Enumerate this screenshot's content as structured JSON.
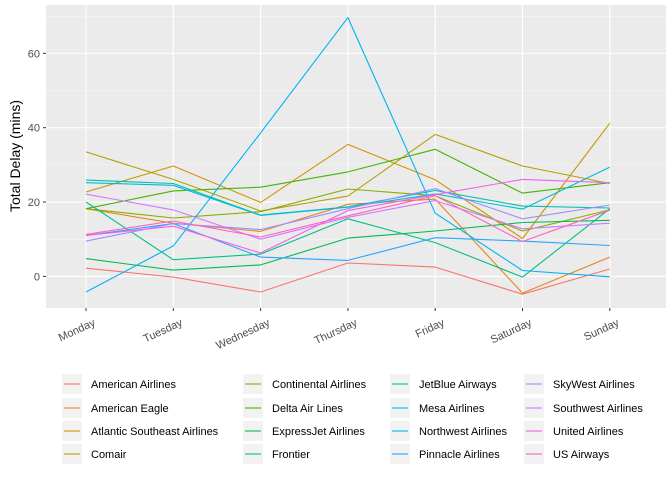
{
  "chart_data": {
    "type": "line",
    "title": "",
    "xlabel": "",
    "ylabel": "Total Delay (mins)",
    "categories": [
      "Monday",
      "Tuesday",
      "Wednesday",
      "Thursday",
      "Friday",
      "Saturday",
      "Sunday"
    ],
    "y_ticks": [
      0,
      20,
      40,
      60
    ],
    "y_tick_labels": [
      "0",
      "20",
      "40",
      "60"
    ],
    "ylim": [
      -8.5,
      73.0
    ],
    "grid": true,
    "legend_position": "bottom",
    "series": [
      {
        "name": "American Airlines",
        "color": "#F8766D",
        "values": [
          2.2,
          -0.2,
          -4.2,
          3.6,
          2.5,
          -4.8,
          2.0
        ]
      },
      {
        "name": "American Eagle",
        "color": "#E7851E",
        "values": [
          18.2,
          14.3,
          12.1,
          19.4,
          20.8,
          -4.5,
          5.2
        ]
      },
      {
        "name": "Atlantic Southeast Airlines",
        "color": "#D09400",
        "values": [
          22.7,
          29.7,
          19.9,
          35.5,
          26.0,
          10.2,
          41.2
        ]
      },
      {
        "name": "Comair",
        "color": "#B2A100",
        "values": [
          33.5,
          26.1,
          17.6,
          21.6,
          38.2,
          29.7,
          25.0
        ]
      },
      {
        "name": "Continental Airlines",
        "color": "#89AC00",
        "values": [
          18.2,
          15.7,
          17.4,
          23.5,
          21.7,
          12.2,
          17.9
        ]
      },
      {
        "name": "Delta Air Lines",
        "color": "#45B500",
        "values": [
          18.2,
          23.0,
          24.0,
          28.1,
          34.2,
          22.4,
          25.2
        ]
      },
      {
        "name": "ExpressJet Airlines",
        "color": "#00BC51",
        "values": [
          4.8,
          1.7,
          3.1,
          10.3,
          12.2,
          14.5,
          15.1
        ]
      },
      {
        "name": "Frontier",
        "color": "#00C087",
        "values": [
          20.0,
          4.5,
          6.0,
          15.5,
          9.1,
          -0.2,
          18.2
        ]
      },
      {
        "name": "JetBlue Airways",
        "color": "#00C0B2",
        "values": [
          25.9,
          25.0,
          16.5,
          18.7,
          23.1,
          18.9,
          18.4
        ]
      },
      {
        "name": "Mesa Airlines",
        "color": "#00BCD6",
        "values": [
          25.2,
          24.5,
          16.4,
          18.6,
          22.2,
          18.1,
          29.4
        ]
      },
      {
        "name": "Northwest Airlines",
        "color": "#00B3F2",
        "values": [
          -4.2,
          8.2,
          38.6,
          69.6,
          17.0,
          1.6,
          -0.1
        ]
      },
      {
        "name": "Pinnacle Airlines",
        "color": "#29A3FF",
        "values": [
          11.0,
          14.2,
          5.2,
          4.3,
          10.4,
          9.5,
          8.3
        ]
      },
      {
        "name": "SkyWest Airlines",
        "color": "#9C8DFF",
        "values": [
          9.5,
          14.2,
          12.6,
          18.2,
          23.6,
          15.5,
          19.2
        ]
      },
      {
        "name": "Southwest Airlines",
        "color": "#D277FF",
        "values": [
          22.1,
          17.9,
          10.0,
          15.9,
          20.4,
          12.8,
          14.3
        ]
      },
      {
        "name": "United Airlines",
        "color": "#F161E9",
        "values": [
          11.0,
          13.5,
          6.3,
          17.7,
          22.0,
          26.1,
          25.2
        ]
      },
      {
        "name": "US Airways",
        "color": "#FF62BC",
        "values": [
          11.3,
          14.9,
          10.6,
          16.3,
          21.7,
          9.4,
          17.8
        ]
      }
    ]
  }
}
